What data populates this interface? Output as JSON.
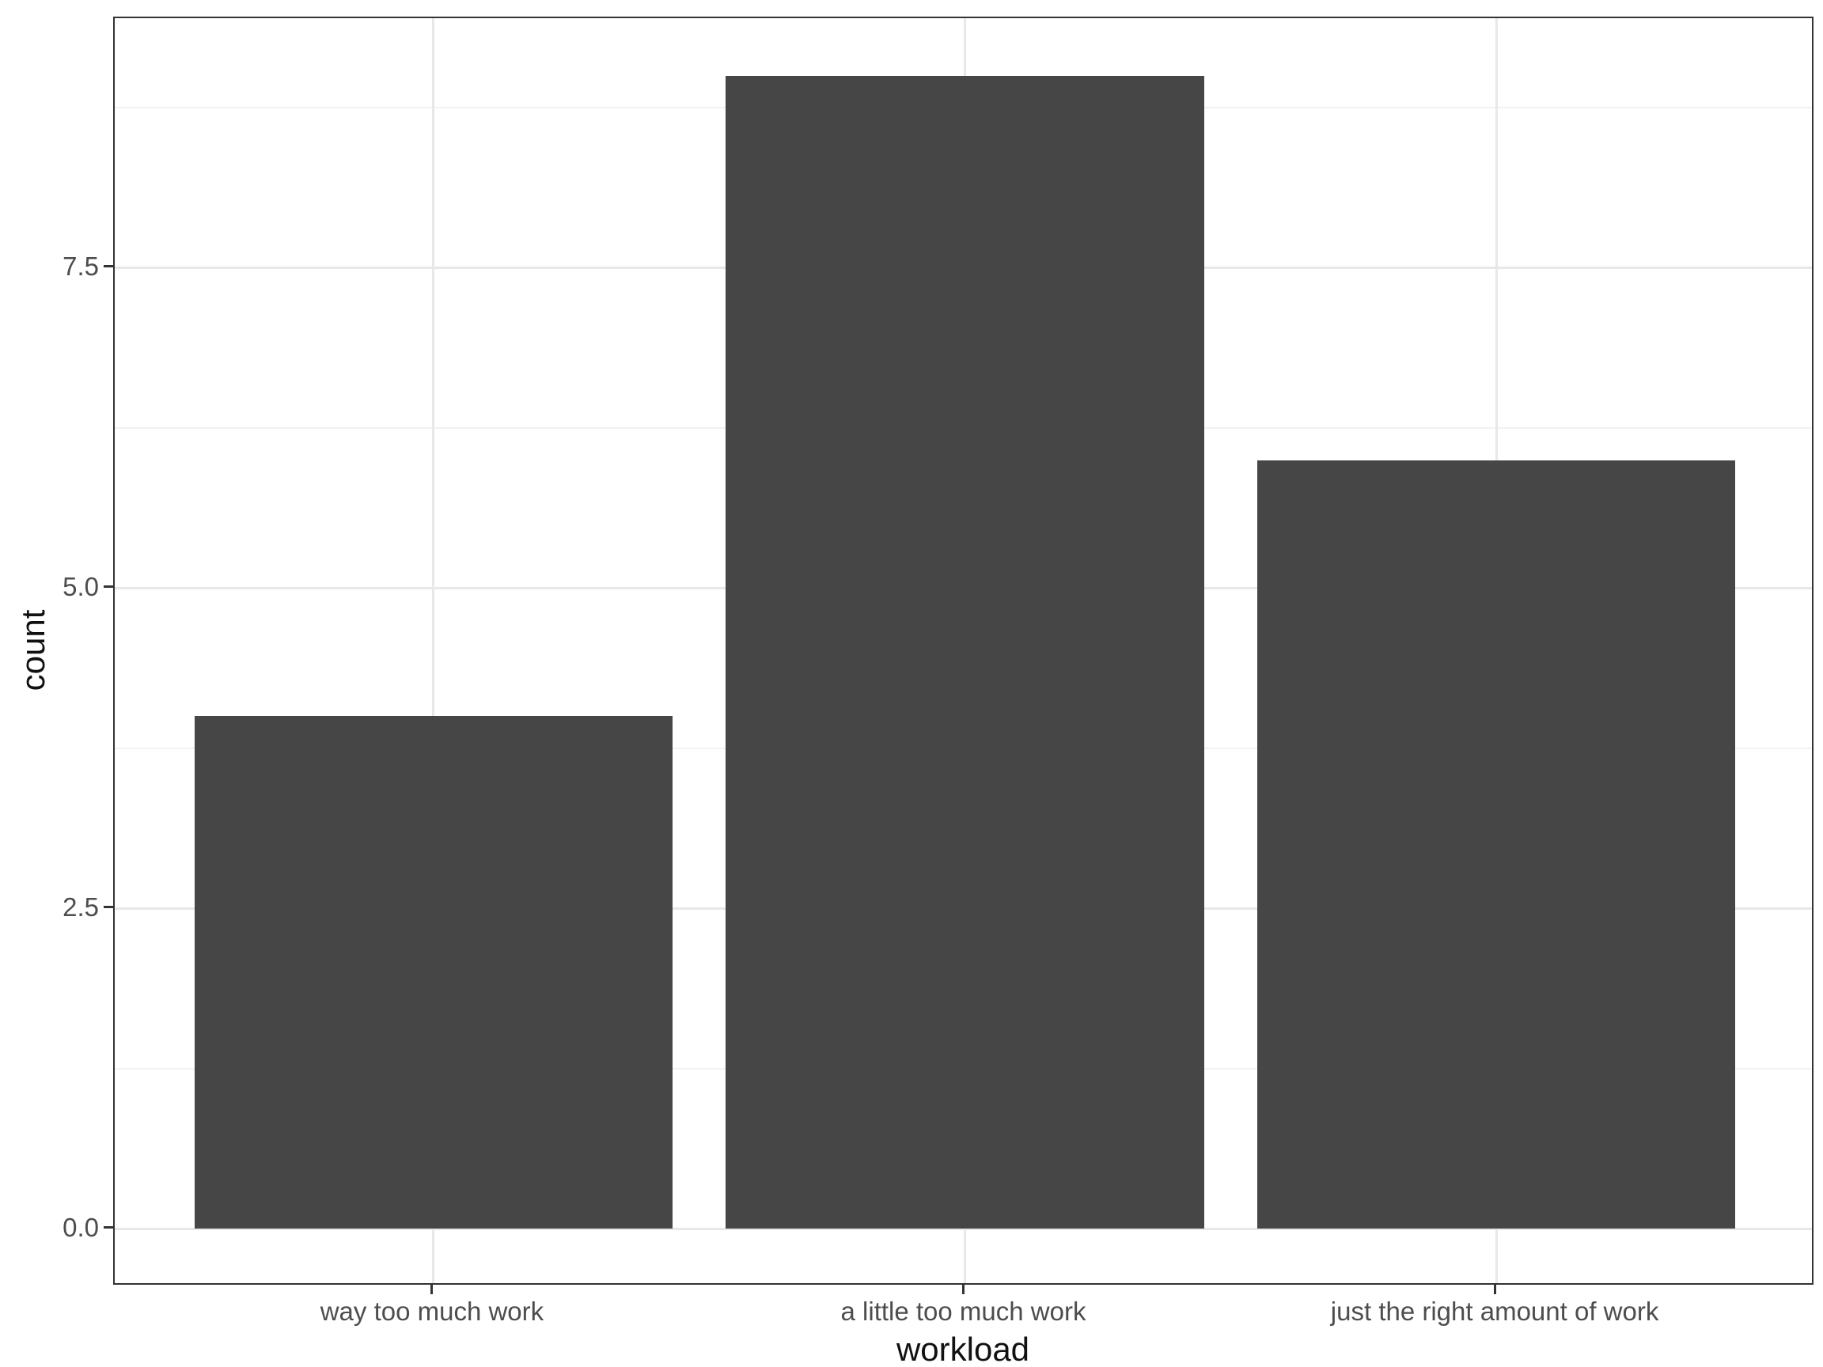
{
  "chart_data": {
    "type": "bar",
    "title": "",
    "categories": [
      "way too much work",
      "a little too much work",
      "just the right amount of work"
    ],
    "values": [
      4,
      9,
      6
    ],
    "xlabel": "workload",
    "ylabel": "count",
    "ylim": [
      -0.45,
      9.45
    ],
    "y_ticks": [
      0,
      2.5,
      5,
      7.5
    ],
    "y_tick_labels": [
      "0.0",
      "2.5",
      "5.0",
      "7.5"
    ],
    "y_minor_ticks": [
      1.25,
      3.75,
      6.25,
      8.75
    ],
    "legend_position": "none",
    "grid": "horizontal-major+minor, vertical-major-at-categories",
    "bar_width_fraction_of_category": 0.9,
    "bar_color": "#464646",
    "grid_major_color": "#e8e8e8",
    "grid_minor_color": "#f2f2f2",
    "panel_border_color": "#333333",
    "tick_mark_color": "#333333",
    "tick_label_color": "#4d4d4d",
    "axis_title_color": "#111111",
    "background_color": "#ffffff"
  }
}
